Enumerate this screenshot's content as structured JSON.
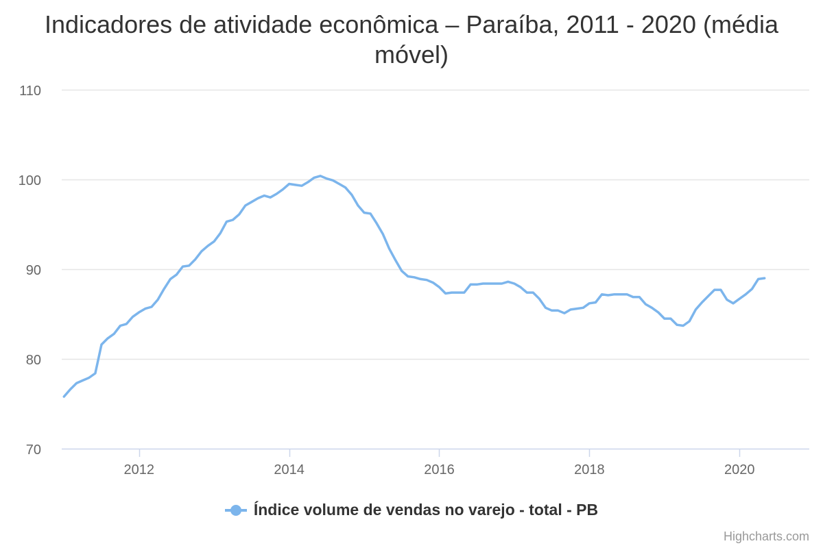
{
  "chart_data": {
    "type": "line",
    "title": "Indicadores de atividade econômica – Paraíba, 2011 - 2020 (média móvel)",
    "xlabel": "",
    "ylabel": "",
    "xlim": [
      2010.97,
      2020.93
    ],
    "ylim": [
      70,
      110
    ],
    "x_ticks": [
      2012,
      2014,
      2016,
      2018,
      2020
    ],
    "x_tick_labels": [
      "2012",
      "2014",
      "2016",
      "2018",
      "2020"
    ],
    "y_ticks": [
      70,
      80,
      90,
      100,
      110
    ],
    "y_tick_labels": [
      "70",
      "80",
      "90",
      "100",
      "110"
    ],
    "grid": true,
    "legend_position": "bottom-center",
    "series": [
      {
        "name": "Índice volume de vendas no varejo - total - PB",
        "color": "#7cb5ec",
        "x": [
          2011.0,
          2011.083,
          2011.167,
          2011.25,
          2011.333,
          2011.417,
          2011.5,
          2011.583,
          2011.667,
          2011.75,
          2011.833,
          2011.917,
          2012.0,
          2012.083,
          2012.167,
          2012.25,
          2012.333,
          2012.417,
          2012.5,
          2012.583,
          2012.667,
          2012.75,
          2012.833,
          2012.917,
          2013.0,
          2013.083,
          2013.167,
          2013.25,
          2013.333,
          2013.417,
          2013.5,
          2013.583,
          2013.667,
          2013.75,
          2013.833,
          2013.917,
          2014.0,
          2014.083,
          2014.167,
          2014.25,
          2014.333,
          2014.417,
          2014.5,
          2014.583,
          2014.667,
          2014.75,
          2014.833,
          2014.917,
          2015.0,
          2015.083,
          2015.167,
          2015.25,
          2015.333,
          2015.417,
          2015.5,
          2015.583,
          2015.667,
          2015.75,
          2015.833,
          2015.917,
          2016.0,
          2016.083,
          2016.167,
          2016.25,
          2016.333,
          2016.417,
          2016.5,
          2016.583,
          2016.667,
          2016.75,
          2016.833,
          2016.917,
          2017.0,
          2017.083,
          2017.167,
          2017.25,
          2017.333,
          2017.417,
          2017.5,
          2017.583,
          2017.667,
          2017.75,
          2017.833,
          2017.917,
          2018.0,
          2018.083,
          2018.167,
          2018.25,
          2018.333,
          2018.417,
          2018.5,
          2018.583,
          2018.667,
          2018.75,
          2018.833,
          2018.917,
          2019.0,
          2019.083,
          2019.167,
          2019.25,
          2019.333,
          2019.417,
          2019.5,
          2019.583,
          2019.667,
          2019.75,
          2019.833,
          2019.917,
          2020.0,
          2020.083,
          2020.167,
          2020.25,
          2020.333
        ],
        "values": [
          75.8,
          76.6,
          77.3,
          77.6,
          77.9,
          78.4,
          81.6,
          82.3,
          82.8,
          83.7,
          83.9,
          84.7,
          85.2,
          85.6,
          85.8,
          86.6,
          87.8,
          88.9,
          89.4,
          90.3,
          90.4,
          91.1,
          92.0,
          92.6,
          93.1,
          94.0,
          95.3,
          95.5,
          96.1,
          97.1,
          97.5,
          97.9,
          98.2,
          98.0,
          98.4,
          98.9,
          99.5,
          99.4,
          99.3,
          99.7,
          100.2,
          100.4,
          100.1,
          99.9,
          99.5,
          99.1,
          98.3,
          97.1,
          96.3,
          96.2,
          95.1,
          93.9,
          92.3,
          91.0,
          89.8,
          89.2,
          89.1,
          88.9,
          88.8,
          88.5,
          88.0,
          87.3,
          87.4,
          87.4,
          87.4,
          88.3,
          88.3,
          88.4,
          88.4,
          88.4,
          88.4,
          88.6,
          88.4,
          88.0,
          87.4,
          87.4,
          86.7,
          85.7,
          85.4,
          85.4,
          85.1,
          85.5,
          85.6,
          85.7,
          86.2,
          86.3,
          87.2,
          87.1,
          87.2,
          87.2,
          87.2,
          86.9,
          86.9,
          86.1,
          85.7,
          85.2,
          84.5,
          84.5,
          83.8,
          83.7,
          84.2,
          85.5,
          86.3,
          87.0,
          87.7,
          87.7,
          86.6,
          86.2,
          86.7,
          87.2,
          87.8,
          88.9,
          89.0
        ]
      }
    ]
  },
  "credits": "Highcharts.com"
}
